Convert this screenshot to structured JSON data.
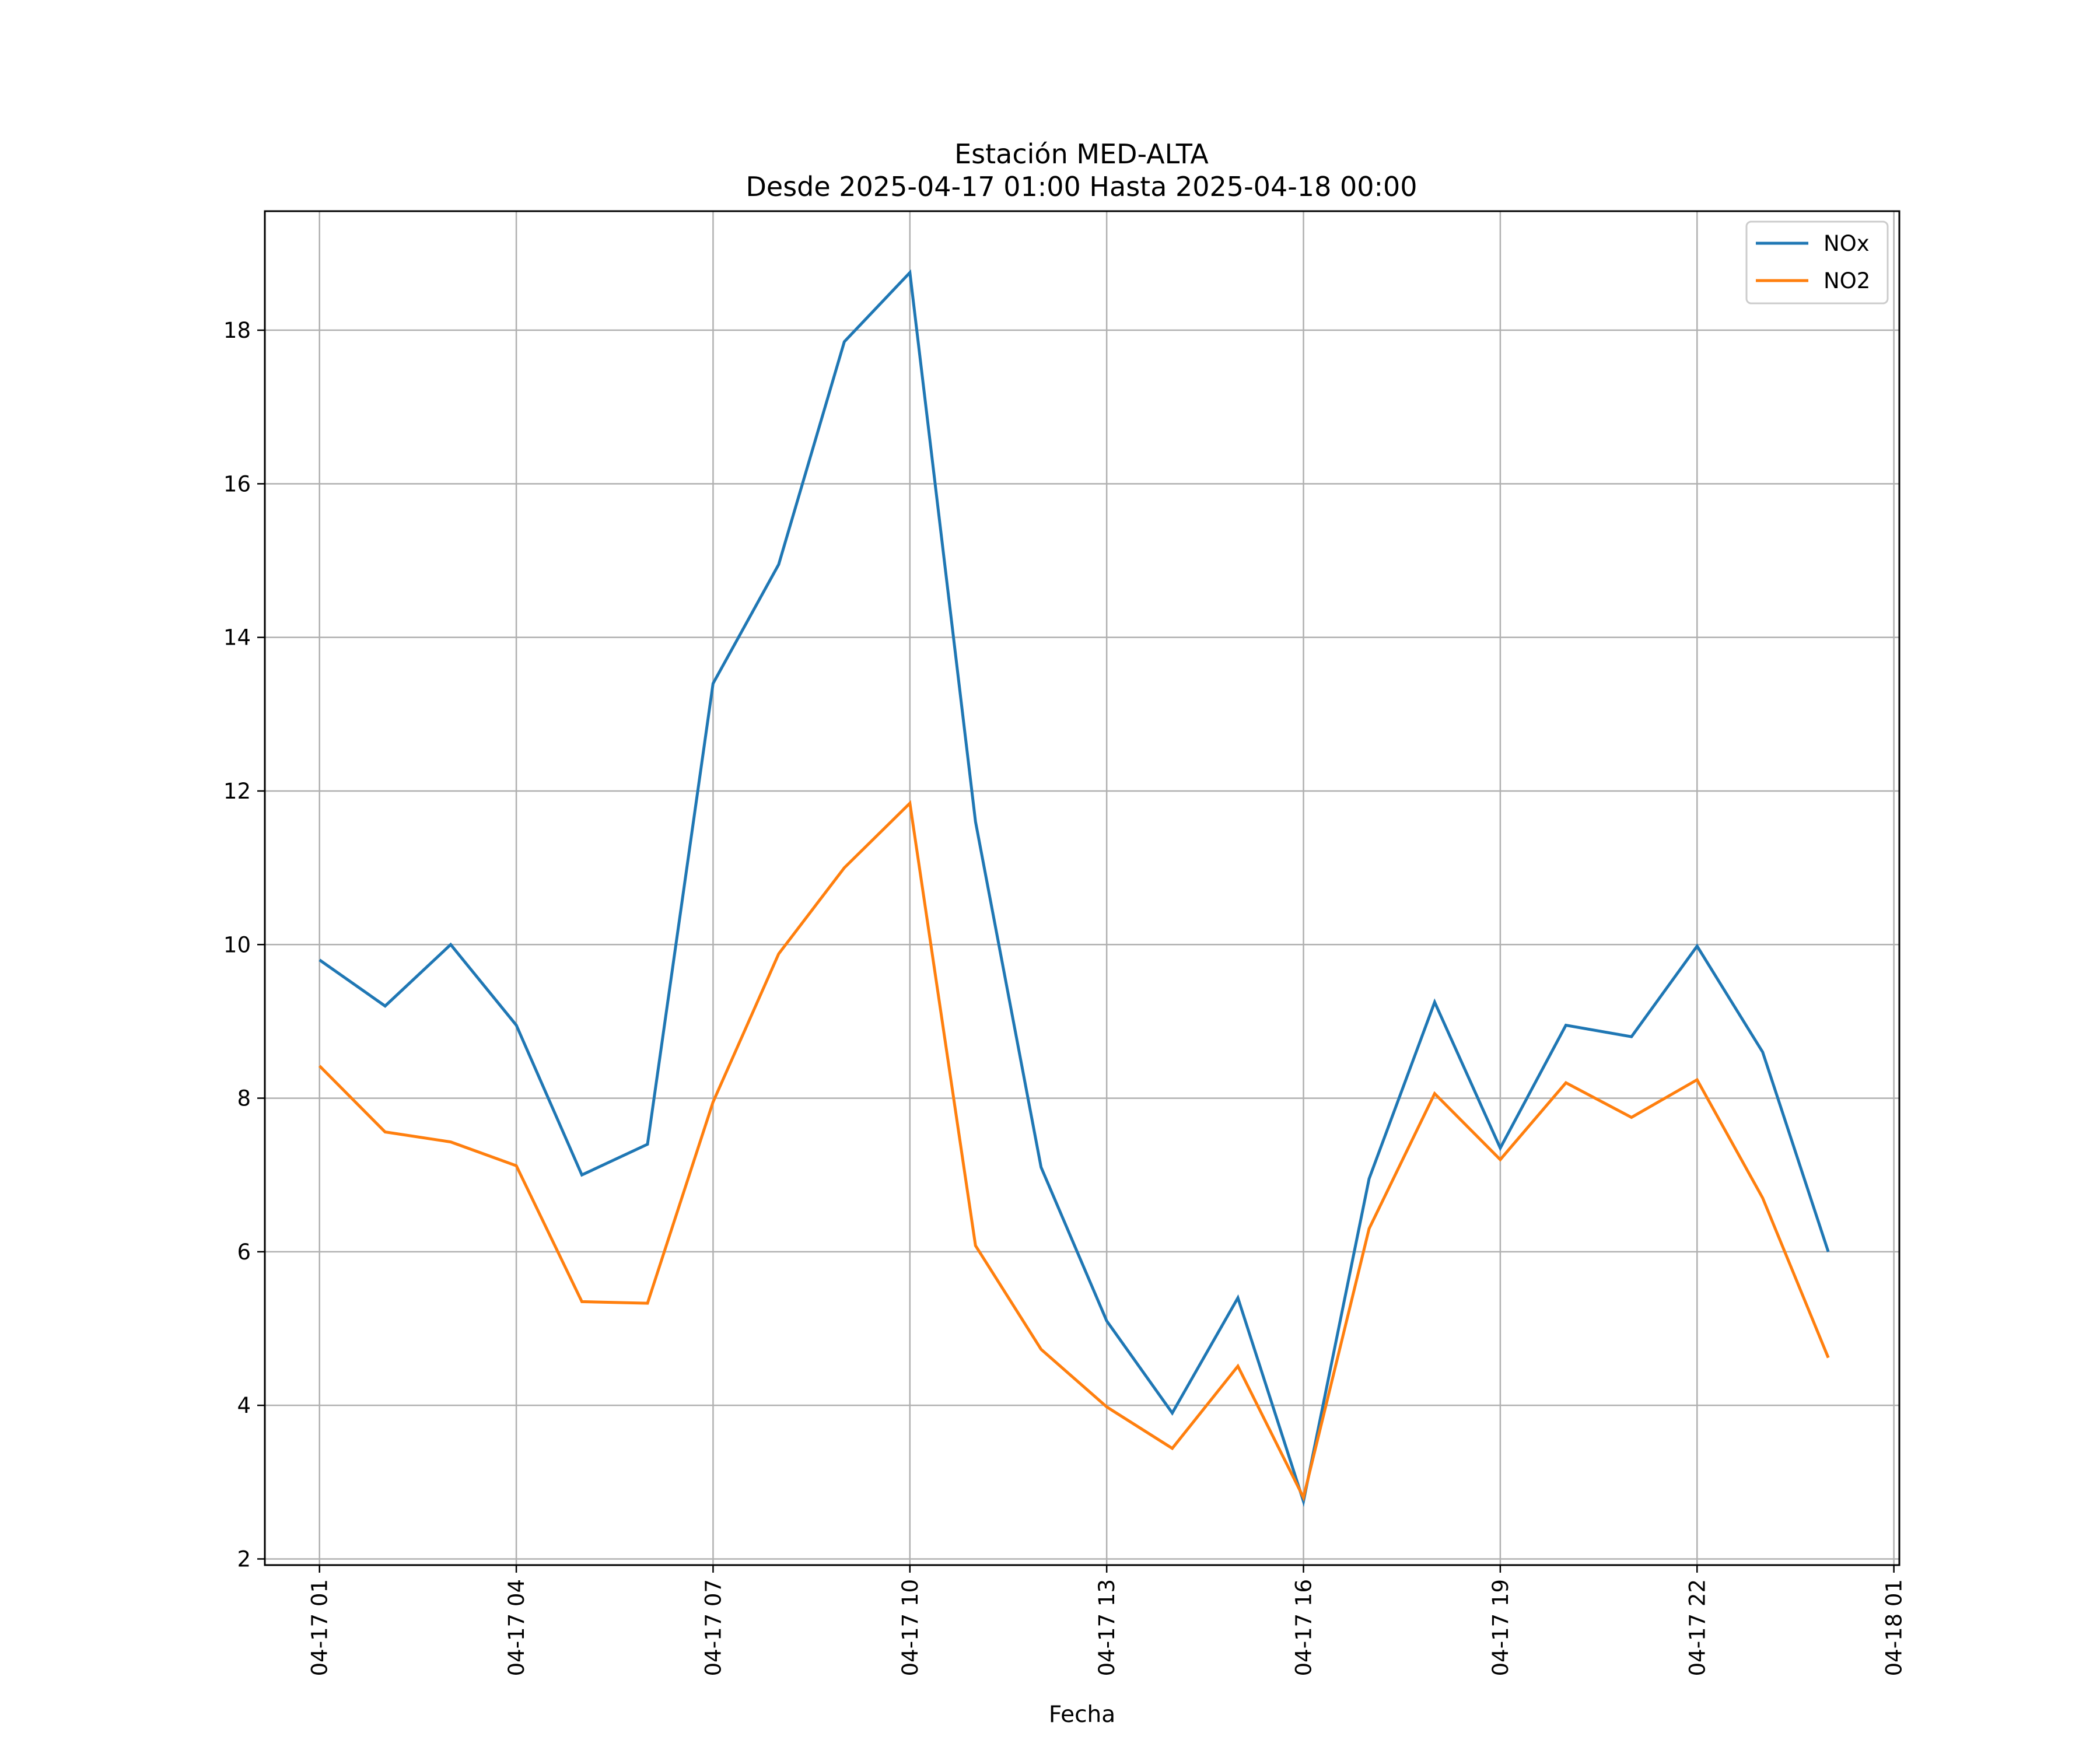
{
  "chart_data": {
    "type": "line",
    "title": "Estación MED-ALTA",
    "subtitle": "Desde 2025-04-17 01:00 Hasta 2025-04-18 00:00",
    "xlabel": "Fecha",
    "ylabel": "",
    "grid": true,
    "legend_position": "top-right",
    "x": [
      "04-17 01",
      "04-17 02",
      "04-17 03",
      "04-17 04",
      "04-17 05",
      "04-17 06",
      "04-17 07",
      "04-17 08",
      "04-17 09",
      "04-17 10",
      "04-17 11",
      "04-17 12",
      "04-17 13",
      "04-17 14",
      "04-17 15",
      "04-17 16",
      "04-17 17",
      "04-17 18",
      "04-17 19",
      "04-17 20",
      "04-17 21",
      "04-17 22",
      "04-17 23",
      "04-18 00"
    ],
    "x_ticks": [
      "04-17 01",
      "04-17 04",
      "04-17 07",
      "04-17 10",
      "04-17 13",
      "04-17 16",
      "04-17 19",
      "04-17 22",
      "04-18 01"
    ],
    "xlim": [
      "04-17 00:10",
      "04-18 01:05"
    ],
    "y_ticks": [
      2,
      4,
      6,
      8,
      10,
      12,
      14,
      16,
      18
    ],
    "ylim": [
      1.92,
      19.55
    ],
    "series": [
      {
        "name": "NOx",
        "color": "#1f77b4",
        "values": [
          9.8,
          9.2,
          10.0,
          8.95,
          7.0,
          7.4,
          13.4,
          14.95,
          17.85,
          18.75,
          11.6,
          7.1,
          5.1,
          3.9,
          5.4,
          2.75,
          6.95,
          9.25,
          7.35,
          8.95,
          8.8,
          9.98,
          8.6,
          6.0
        ]
      },
      {
        "name": "NO2",
        "color": "#ff7f0e",
        "values": [
          8.42,
          7.56,
          7.43,
          7.12,
          5.35,
          5.33,
          7.95,
          9.88,
          11.0,
          11.84,
          6.08,
          4.73,
          3.98,
          3.44,
          4.51,
          2.8,
          6.3,
          8.06,
          7.2,
          8.2,
          7.75,
          8.24,
          6.7,
          4.62
        ]
      }
    ]
  }
}
